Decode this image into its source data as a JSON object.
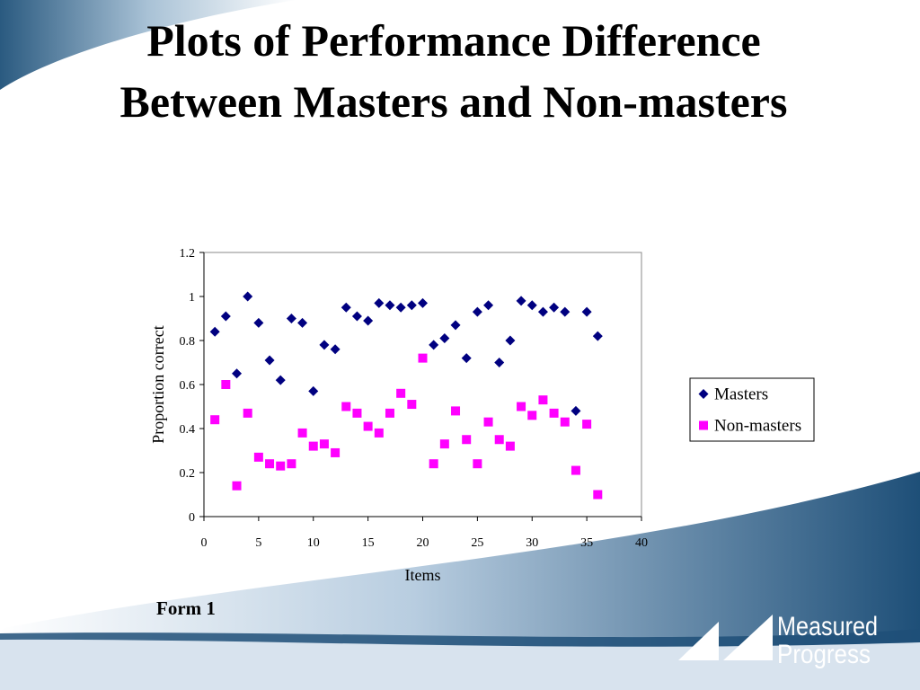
{
  "chart_data": {
    "type": "scatter",
    "title": [
      "Plots of Performance Difference",
      "Between Masters and Non-masters"
    ],
    "xlabel": "Items",
    "ylabel": "Proportion correct",
    "x": [
      1,
      2,
      3,
      4,
      5,
      6,
      7,
      8,
      9,
      10,
      11,
      12,
      13,
      14,
      15,
      16,
      17,
      18,
      19,
      20,
      21,
      22,
      23,
      24,
      25,
      26,
      27,
      28,
      29,
      30,
      31,
      32,
      33,
      34,
      35,
      36
    ],
    "series": [
      {
        "name": "Masters",
        "color": "#000080",
        "marker": "diamond",
        "values": [
          0.84,
          0.91,
          0.65,
          1.0,
          0.88,
          0.71,
          0.62,
          0.9,
          0.88,
          0.57,
          0.78,
          0.76,
          0.95,
          0.91,
          0.89,
          0.97,
          0.96,
          0.95,
          0.96,
          0.97,
          0.78,
          0.81,
          0.87,
          0.72,
          0.93,
          0.96,
          0.7,
          0.8,
          0.98,
          0.96,
          0.93,
          0.95,
          0.93,
          0.48,
          0.93,
          0.82
        ]
      },
      {
        "name": "Non-masters",
        "color": "#ff00ff",
        "marker": "square",
        "values": [
          0.44,
          0.6,
          0.14,
          0.47,
          0.27,
          0.24,
          0.23,
          0.24,
          0.38,
          0.32,
          0.33,
          0.29,
          0.5,
          0.47,
          0.41,
          0.38,
          0.47,
          0.56,
          0.51,
          0.72,
          0.24,
          0.33,
          0.48,
          0.35,
          0.24,
          0.43,
          0.35,
          0.32,
          0.5,
          0.46,
          0.53,
          0.47,
          0.43,
          0.21,
          0.42,
          0.1
        ]
      }
    ],
    "xlim": [
      0,
      40
    ],
    "xticks": [
      0,
      5,
      10,
      15,
      20,
      25,
      30,
      35,
      40
    ],
    "ylim": [
      0,
      1.2
    ],
    "yticks": [
      0,
      0.2,
      0.4,
      0.6,
      0.8,
      1,
      1.2
    ],
    "legend": "right"
  },
  "slide": {
    "caption": "Form 1",
    "logo": [
      "Measured",
      "Progress"
    ]
  }
}
